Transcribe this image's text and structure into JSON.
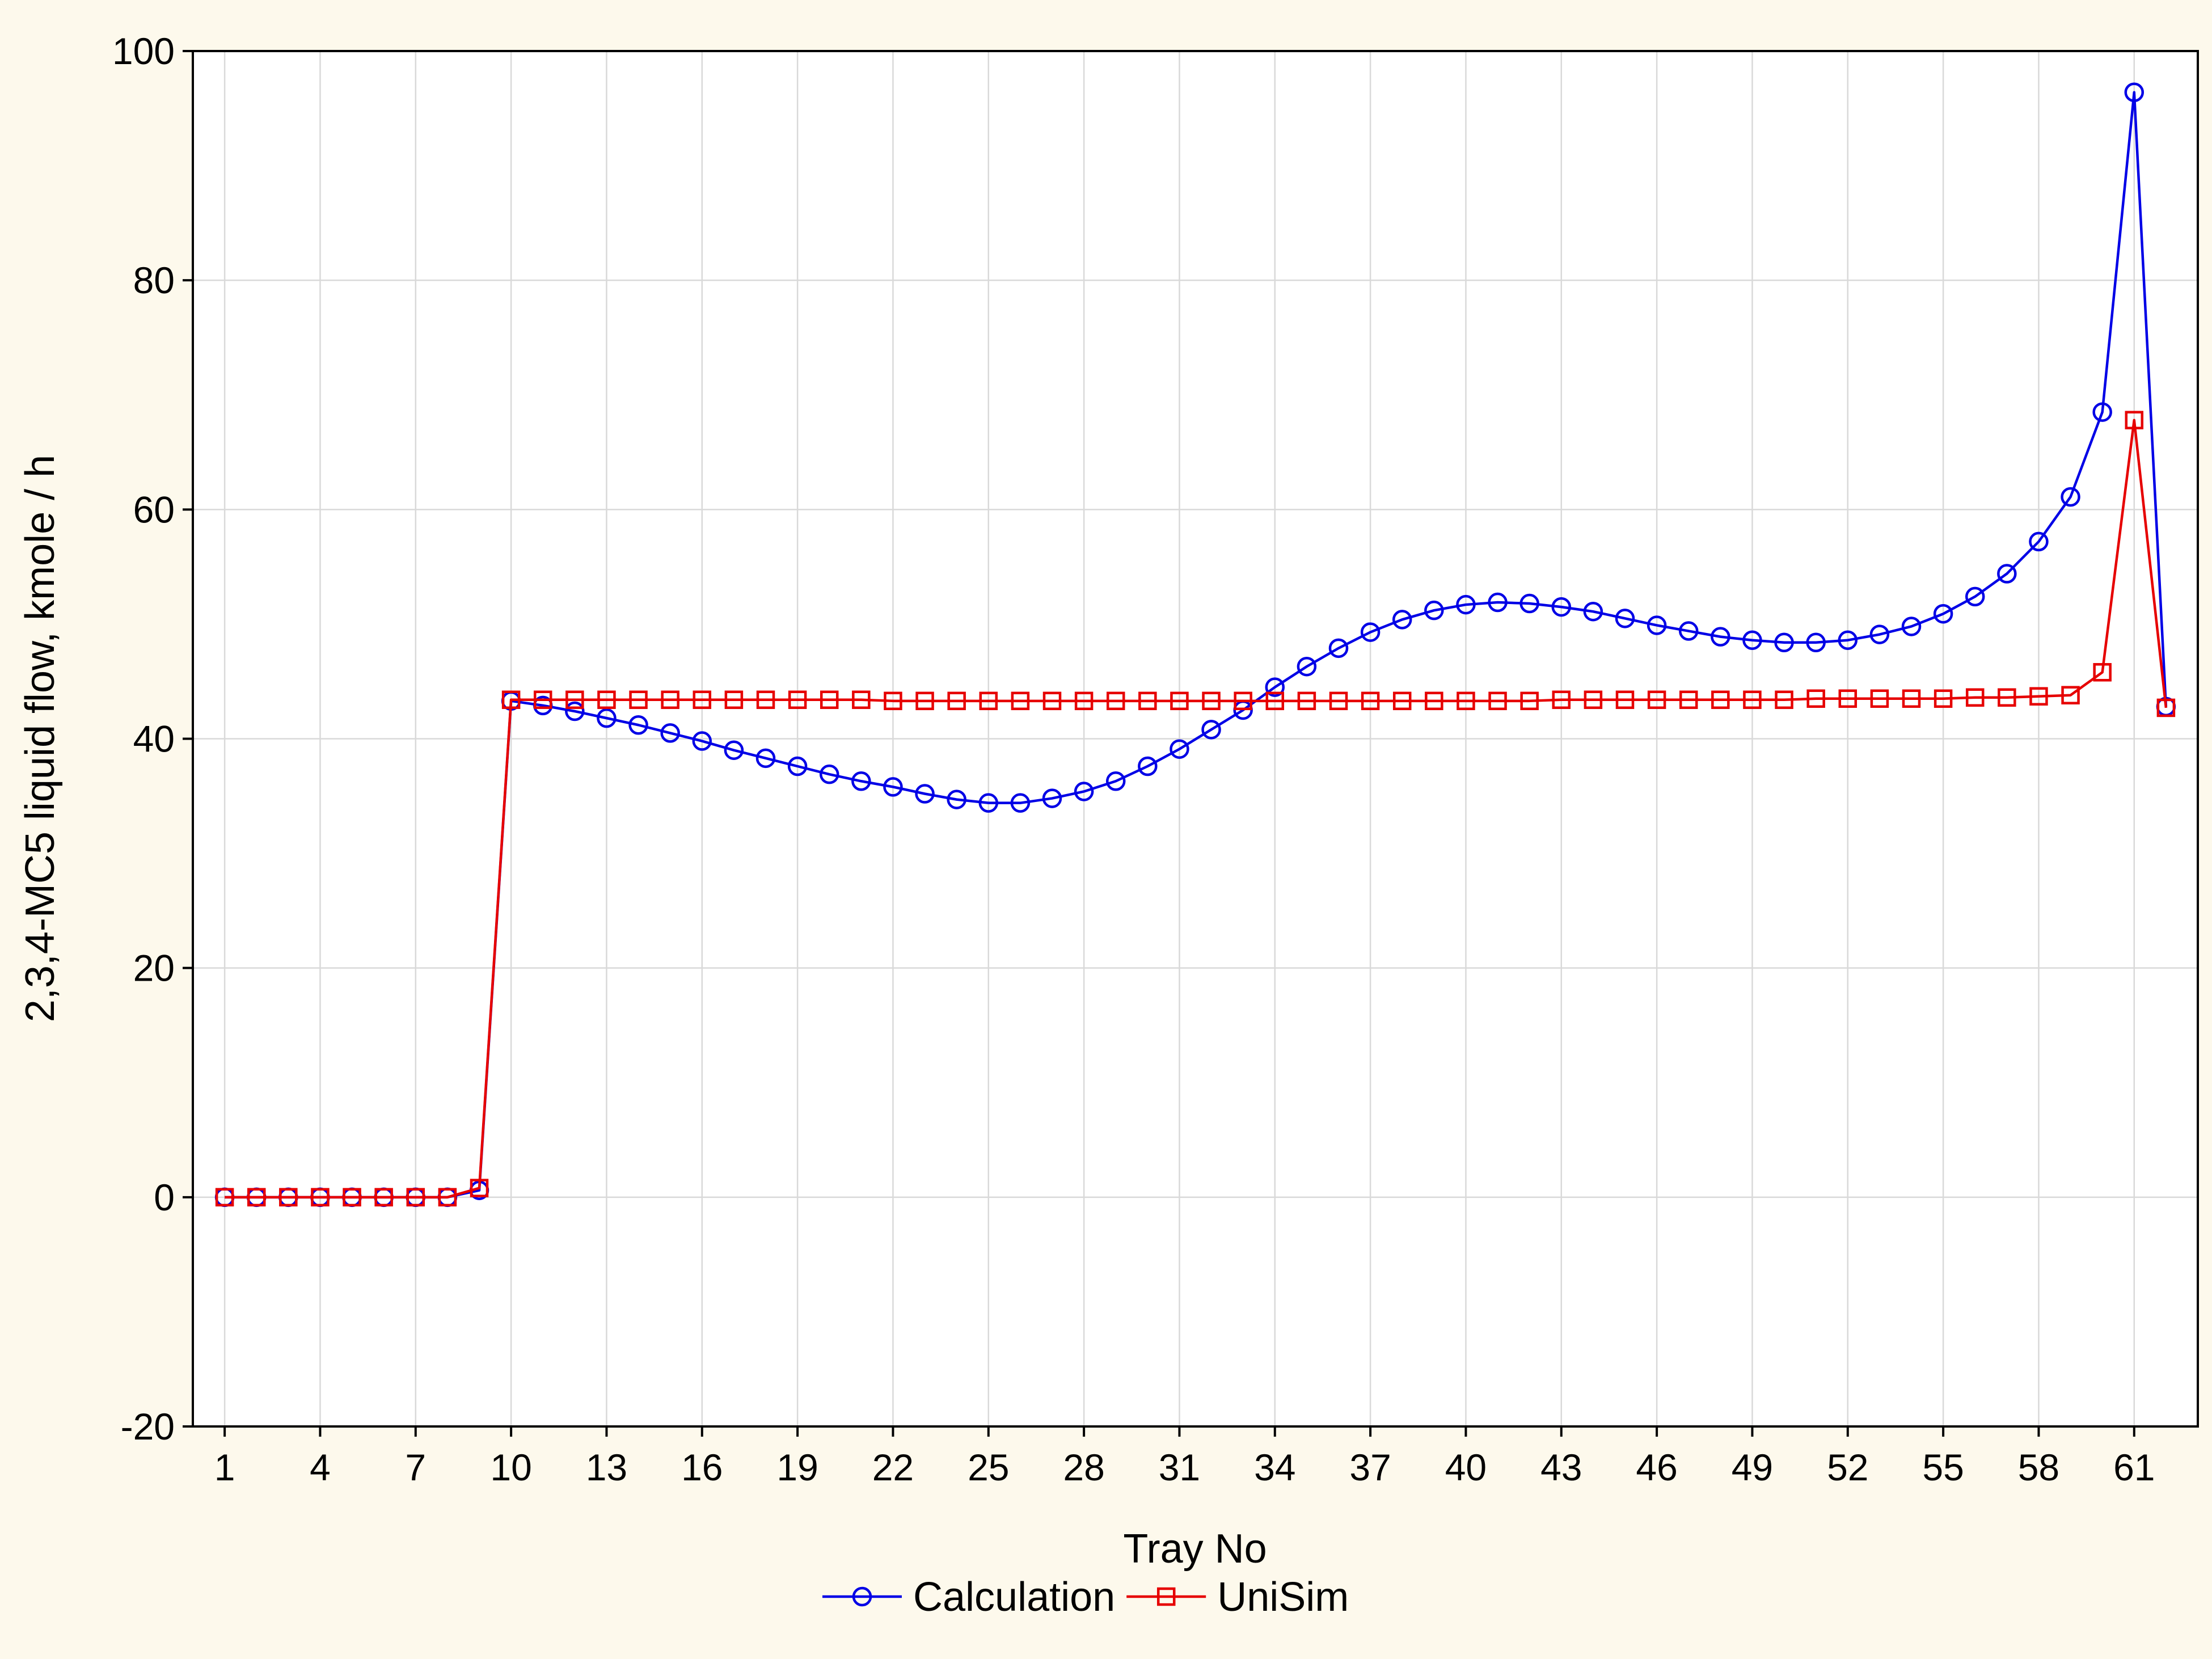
{
  "chart_data": {
    "type": "line",
    "xlabel": "Tray No",
    "ylabel": "2,3,4-MC5 liquid flow, kmole / h",
    "xlim": [
      0,
      63
    ],
    "ylim": [
      -20,
      100
    ],
    "x_ticks": [
      1,
      4,
      7,
      10,
      13,
      16,
      19,
      22,
      25,
      28,
      31,
      34,
      37,
      40,
      43,
      46,
      49,
      52,
      55,
      58,
      61
    ],
    "y_ticks": [
      -20,
      0,
      20,
      40,
      60,
      80,
      100
    ],
    "grid": true,
    "legend_position": "bottom",
    "x": [
      1,
      2,
      3,
      4,
      5,
      6,
      7,
      8,
      9,
      10,
      11,
      12,
      13,
      14,
      15,
      16,
      17,
      18,
      19,
      20,
      21,
      22,
      23,
      24,
      25,
      26,
      27,
      28,
      29,
      30,
      31,
      32,
      33,
      34,
      35,
      36,
      37,
      38,
      39,
      40,
      41,
      42,
      43,
      44,
      45,
      46,
      47,
      48,
      49,
      50,
      51,
      52,
      53,
      54,
      55,
      56,
      57,
      58,
      59,
      60,
      61,
      62
    ],
    "series": [
      {
        "name": "Calculation",
        "color": "#0000e6",
        "marker": "circle",
        "values": [
          0,
          0,
          0,
          0,
          0,
          0,
          0,
          0,
          0.6,
          43.3,
          42.9,
          42.4,
          41.8,
          41.2,
          40.5,
          39.8,
          39.0,
          38.3,
          37.6,
          36.9,
          36.3,
          35.8,
          35.2,
          34.7,
          34.4,
          34.4,
          34.8,
          35.4,
          36.3,
          37.6,
          39.1,
          40.8,
          42.5,
          44.5,
          46.3,
          47.9,
          49.3,
          50.4,
          51.2,
          51.7,
          51.9,
          51.8,
          51.5,
          51.1,
          50.5,
          49.9,
          49.4,
          48.9,
          48.6,
          48.4,
          48.4,
          48.6,
          49.1,
          49.8,
          50.9,
          52.4,
          54.4,
          57.2,
          61.1,
          68.5,
          96.4,
          42.8
        ]
      },
      {
        "name": "UniSim",
        "color": "#e60000",
        "marker": "square",
        "values": [
          0,
          0,
          0,
          0,
          0,
          0,
          0,
          0,
          0.8,
          43.4,
          43.4,
          43.4,
          43.4,
          43.4,
          43.4,
          43.4,
          43.4,
          43.4,
          43.4,
          43.4,
          43.4,
          43.3,
          43.3,
          43.3,
          43.3,
          43.3,
          43.3,
          43.3,
          43.3,
          43.3,
          43.3,
          43.3,
          43.3,
          43.3,
          43.3,
          43.3,
          43.3,
          43.3,
          43.3,
          43.3,
          43.3,
          43.3,
          43.4,
          43.4,
          43.4,
          43.4,
          43.4,
          43.4,
          43.4,
          43.4,
          43.5,
          43.5,
          43.5,
          43.5,
          43.5,
          43.6,
          43.6,
          43.7,
          43.8,
          45.8,
          67.8,
          42.7
        ]
      }
    ]
  }
}
